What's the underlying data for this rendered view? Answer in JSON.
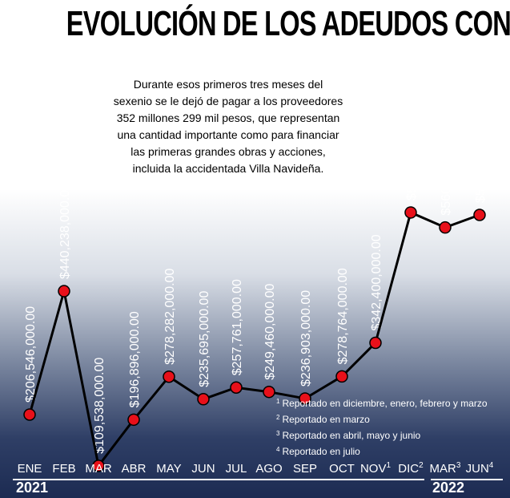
{
  "title": "EVOLUCIÓN DE LOS ADEUDOS CON PROVEEDORES",
  "description": [
    "Durante esos primeros tres meses del",
    "sexenio se le dejó de pagar a los proveedores",
    "352 millones 299 mil pesos, que representan",
    "una cantidad importante como para financiar",
    "las primeras grandes obras y acciones,",
    "incluida la accidentada Villa Navideña."
  ],
  "notes": [
    {
      "mark": "1",
      "text": "Reportado en diciembre, enero, febrero y marzo"
    },
    {
      "mark": "2",
      "text": "Reportado en marzo"
    },
    {
      "mark": "3",
      "text": "Reportado en abril, mayo y junio"
    },
    {
      "mark": "4",
      "text": "Reportado en julio"
    }
  ],
  "years": [
    "2021",
    "2022"
  ],
  "colors": {
    "line": "#000000",
    "marker": "#e8101a",
    "label_dark": "#1a1a1a",
    "label_light": "#ffffff"
  },
  "chart_data": {
    "type": "line",
    "categories": [
      "ENE",
      "FEB",
      "MAR",
      "ABR",
      "MAY",
      "JUN",
      "JUL",
      "AGO",
      "SEP",
      "OCT",
      "NOV",
      "DIC",
      "MAR",
      "JUN"
    ],
    "category_marks": [
      "",
      "",
      "",
      "",
      "",
      "",
      "",
      "",
      "",
      "",
      "1",
      "2",
      "3",
      "4"
    ],
    "values": [
      206546000,
      440238000,
      109538000,
      196896000,
      278282000,
      235695000,
      257761000,
      249460000,
      236903000,
      278764000,
      342400000,
      589202000,
      560766000,
      584563000
    ],
    "data_labels": [
      "$206,546,000.00",
      "$440,238,000.00",
      "$109,538,000.00",
      "$196,896,000.00",
      "$278,282,000.00",
      "$235,695,000.00",
      "$257,761,000.00",
      "$249,460,000.00",
      "$236,903,000.00",
      "$278,764,000.00",
      "$342,400,000.00",
      "$589,202,000.00",
      "$560,766,000.00",
      "$584,563,000.00"
    ],
    "title": "EVOLUCIÓN DE LOS ADEUDOS CON PROVEEDORES",
    "xlabel": "",
    "ylabel": "",
    "grid": false
  }
}
